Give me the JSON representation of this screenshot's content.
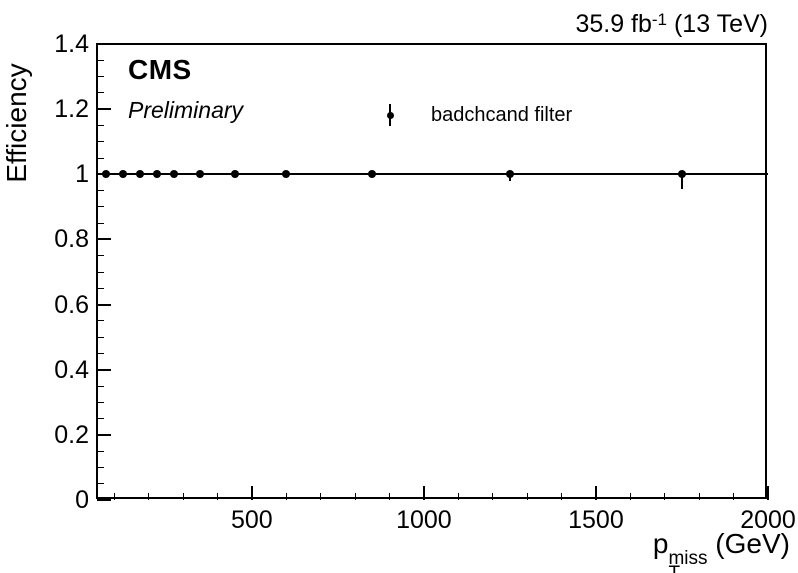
{
  "annotations": {
    "cms": "CMS",
    "preliminary": "Preliminary",
    "lumi": {
      "text": "35.9 fb",
      "sup": "-1",
      "rest": " (13 TeV)"
    }
  },
  "chart_data": {
    "type": "scatter",
    "title": "",
    "xlabel": "pT^miss (GeV)",
    "ylabel": "Efficiency",
    "x_title_parts": {
      "base": "p",
      "sub": "T",
      "sup": "miss",
      "rest": " (GeV)"
    },
    "xlim": [
      50,
      2000
    ],
    "ylim": [
      0,
      1.4
    ],
    "x_major_ticks": [
      500,
      1000,
      1500,
      2000
    ],
    "x_major_labels": [
      "500",
      "1000",
      "1500",
      "2000"
    ],
    "x_minor_step": 100,
    "y_major_ticks": [
      0,
      0.2,
      0.4,
      0.6,
      0.8,
      1.0,
      1.2,
      1.4
    ],
    "y_major_labels": [
      "0",
      "0.2",
      "0.4",
      "0.6",
      "0.8",
      "1",
      "1.2",
      "1.4"
    ],
    "y_minor_step": 0.05,
    "grid": false,
    "reference_line_y": 1,
    "legend": {
      "position": "top-center",
      "entries": [
        "badchcand filter"
      ]
    },
    "series": [
      {
        "name": "badchcand filter",
        "marker": "filled-circle",
        "color": "#000000",
        "x": [
          75,
          125,
          175,
          225,
          275,
          350,
          450,
          600,
          850,
          1250,
          1750
        ],
        "y": [
          1.0,
          1.0,
          1.0,
          1.0,
          1.0,
          1.0,
          1.0,
          1.0,
          1.0,
          1.0,
          1.0
        ],
        "yerr_low": [
          0,
          0,
          0,
          0,
          0,
          0,
          0,
          0,
          0,
          0.02,
          0.045
        ],
        "yerr_high": [
          0,
          0,
          0,
          0,
          0,
          0,
          0,
          0,
          0,
          0,
          0
        ]
      }
    ]
  }
}
